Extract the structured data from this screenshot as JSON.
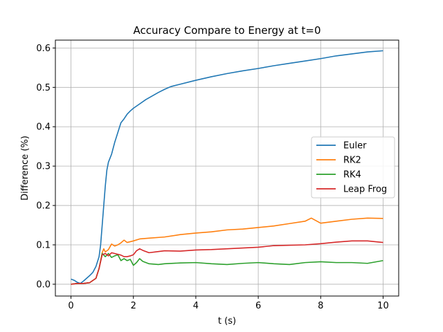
{
  "chart_data": {
    "type": "line",
    "title": "Accuracy Compare to Energy at t=0",
    "xlabel": "t (s)",
    "ylabel": "Difference (%)",
    "xlim": [
      -0.5,
      10.5
    ],
    "ylim": [
      -0.03,
      0.62
    ],
    "xticks": [
      0,
      2,
      4,
      6,
      8,
      10
    ],
    "xtick_labels": [
      "0",
      "2",
      "4",
      "6",
      "8",
      "10"
    ],
    "yticks": [
      0.0,
      0.1,
      0.2,
      0.3,
      0.4,
      0.5,
      0.6
    ],
    "ytick_labels": [
      "0.0",
      "0.1",
      "0.2",
      "0.3",
      "0.4",
      "0.5",
      "0.6"
    ],
    "grid": true,
    "legend_position": "center-right",
    "series": [
      {
        "name": "Euler",
        "color": "#1f77b4",
        "x": [
          0,
          0.1,
          0.2,
          0.3,
          0.4,
          0.5,
          0.6,
          0.7,
          0.8,
          0.9,
          0.95,
          1.0,
          1.05,
          1.1,
          1.15,
          1.2,
          1.3,
          1.4,
          1.5,
          1.6,
          1.7,
          1.8,
          1.9,
          2.0,
          2.2,
          2.4,
          2.6,
          2.8,
          3.0,
          3.2,
          3.5,
          4.0,
          4.5,
          5.0,
          5.5,
          6.0,
          6.5,
          7.0,
          7.5,
          8.0,
          8.5,
          9.0,
          9.5,
          10.0
        ],
        "y": [
          0.013,
          0.01,
          0.005,
          0.002,
          0.008,
          0.015,
          0.022,
          0.03,
          0.045,
          0.07,
          0.1,
          0.15,
          0.2,
          0.25,
          0.29,
          0.31,
          0.33,
          0.36,
          0.385,
          0.41,
          0.42,
          0.432,
          0.44,
          0.447,
          0.458,
          0.469,
          0.478,
          0.487,
          0.495,
          0.502,
          0.508,
          0.518,
          0.527,
          0.535,
          0.542,
          0.548,
          0.555,
          0.561,
          0.567,
          0.573,
          0.58,
          0.585,
          0.59,
          0.593
        ]
      },
      {
        "name": "RK2",
        "color": "#ff7f0e",
        "x": [
          0,
          0.2,
          0.4,
          0.6,
          0.8,
          0.9,
          1.0,
          1.05,
          1.1,
          1.2,
          1.3,
          1.4,
          1.5,
          1.6,
          1.7,
          1.8,
          2.0,
          2.2,
          2.5,
          3.0,
          3.5,
          4.0,
          4.5,
          5.0,
          5.5,
          6.0,
          6.5,
          7.0,
          7.5,
          7.7,
          8.0,
          8.5,
          9.0,
          9.5,
          10.0
        ],
        "y": [
          0.0,
          0.002,
          0.002,
          0.004,
          0.015,
          0.04,
          0.08,
          0.09,
          0.082,
          0.088,
          0.102,
          0.097,
          0.1,
          0.105,
          0.112,
          0.106,
          0.11,
          0.115,
          0.117,
          0.12,
          0.126,
          0.13,
          0.133,
          0.138,
          0.14,
          0.144,
          0.148,
          0.154,
          0.16,
          0.168,
          0.155,
          0.16,
          0.165,
          0.168,
          0.167
        ]
      },
      {
        "name": "RK4",
        "color": "#2ca02c",
        "x": [
          0,
          0.2,
          0.4,
          0.6,
          0.8,
          0.9,
          1.0,
          1.1,
          1.2,
          1.3,
          1.4,
          1.5,
          1.6,
          1.7,
          1.8,
          1.9,
          2.0,
          2.1,
          2.2,
          2.3,
          2.5,
          2.8,
          3.0,
          3.5,
          4.0,
          4.5,
          5.0,
          5.5,
          6.0,
          6.5,
          7.0,
          7.5,
          8.0,
          8.5,
          9.0,
          9.5,
          10.0
        ],
        "y": [
          0.0,
          0.002,
          0.002,
          0.004,
          0.015,
          0.04,
          0.078,
          0.07,
          0.078,
          0.068,
          0.072,
          0.075,
          0.06,
          0.065,
          0.06,
          0.063,
          0.048,
          0.055,
          0.065,
          0.058,
          0.052,
          0.05,
          0.052,
          0.054,
          0.055,
          0.052,
          0.05,
          0.053,
          0.055,
          0.052,
          0.05,
          0.055,
          0.057,
          0.055,
          0.055,
          0.053,
          0.06
        ]
      },
      {
        "name": "Leap Frog",
        "color": "#d62728",
        "x": [
          0,
          0.2,
          0.4,
          0.6,
          0.8,
          0.9,
          1.0,
          1.1,
          1.2,
          1.3,
          1.4,
          1.5,
          1.6,
          1.7,
          1.8,
          1.9,
          2.0,
          2.1,
          2.2,
          2.3,
          2.5,
          2.8,
          3.0,
          3.5,
          4.0,
          4.5,
          5.0,
          5.5,
          6.0,
          6.5,
          7.0,
          7.5,
          8.0,
          8.5,
          9.0,
          9.5,
          10.0
        ],
        "y": [
          0.0,
          0.002,
          0.002,
          0.004,
          0.015,
          0.04,
          0.075,
          0.078,
          0.072,
          0.08,
          0.078,
          0.076,
          0.074,
          0.07,
          0.07,
          0.072,
          0.075,
          0.085,
          0.09,
          0.086,
          0.08,
          0.083,
          0.085,
          0.084,
          0.087,
          0.088,
          0.09,
          0.092,
          0.094,
          0.098,
          0.099,
          0.1,
          0.103,
          0.107,
          0.11,
          0.11,
          0.106
        ]
      }
    ]
  }
}
